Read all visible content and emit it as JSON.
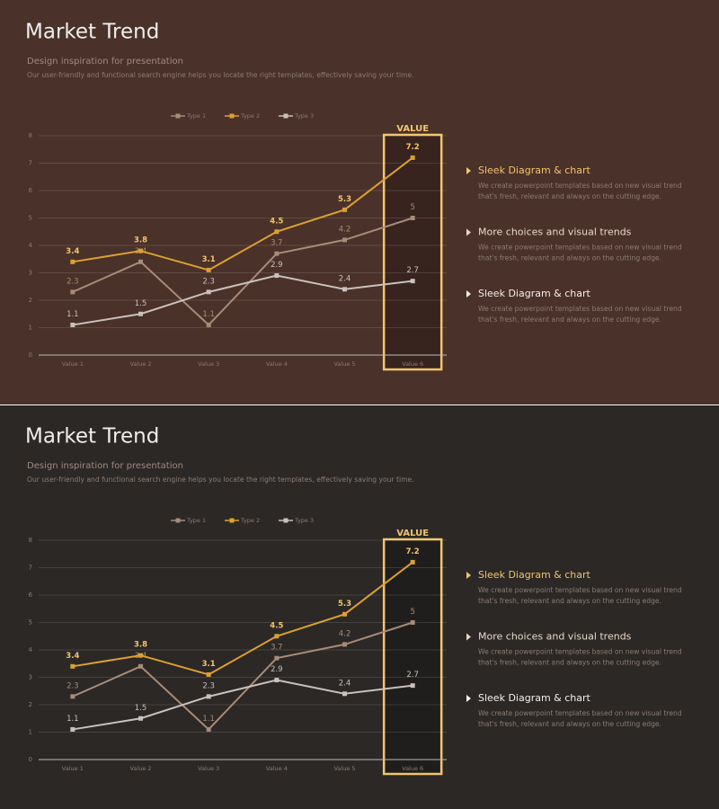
{
  "chart_data": [
    {
      "type": "line",
      "background": "#4a3129",
      "title": "Market Trend",
      "subtitle": "Design inspiration for presentation",
      "description": "Our user-friendly and functional search engine helps you locate the right templates, effectively saving your time.",
      "categories": [
        "Value 1",
        "Value 2",
        "Value 3",
        "Value 4",
        "Value 5",
        "Value 6"
      ],
      "series": [
        {
          "name": "Type 1",
          "color": "#a88b78",
          "values": [
            2.3,
            3.4,
            1.1,
            3.7,
            4.2,
            5
          ]
        },
        {
          "name": "Type 2",
          "color": "#dca032",
          "values": [
            3.4,
            3.8,
            3.1,
            4.5,
            5.3,
            7.2
          ]
        },
        {
          "name": "Type 3",
          "color": "#c9c1bc",
          "values": [
            1.1,
            1.5,
            2.3,
            2.9,
            2.4,
            2.7
          ]
        }
      ],
      "ylim": [
        0,
        8
      ],
      "yticks": [
        0,
        1,
        2,
        3,
        4,
        5,
        6,
        7,
        8
      ],
      "grid": true,
      "legend": "top",
      "highlight": {
        "category": 5,
        "label": "VALUE",
        "color": "#f2c46e"
      },
      "bullets": [
        {
          "heading": "Sleek Diagram & chart",
          "color": "#f2c46e",
          "lines": [
            "We create powerpoint templates based on new visual trend",
            "that's fresh, relevant and always on the cutting edge."
          ]
        },
        {
          "heading": "More choices and visual trends",
          "color": "#e8d8c8",
          "lines": [
            "We create powerpoint templates based on new visual trend",
            "that's fresh, relevant and always on the cutting edge."
          ]
        },
        {
          "heading": "Sleek Diagram & chart",
          "color": "#f4f0ec",
          "lines": [
            "We create powerpoint templates based on new visual trend",
            "that's fresh, relevant and always on the cutting edge."
          ]
        }
      ]
    },
    {
      "type": "line",
      "background": "#2b2826",
      "title": "Market Trend",
      "subtitle": "Design inspiration for presentation",
      "description": "Our user-friendly and functional search engine helps you locate the right templates, effectively saving your time.",
      "categories": [
        "Value 1",
        "Value 2",
        "Value 3",
        "Value 4",
        "Value 5",
        "Value 6"
      ],
      "series": [
        {
          "name": "Type 1",
          "color": "#a88b78",
          "values": [
            2.3,
            3.4,
            1.1,
            3.7,
            4.2,
            5
          ]
        },
        {
          "name": "Type 2",
          "color": "#dca032",
          "values": [
            3.4,
            3.8,
            3.1,
            4.5,
            5.3,
            7.2
          ]
        },
        {
          "name": "Type 3",
          "color": "#c9c1bc",
          "values": [
            1.1,
            1.5,
            2.3,
            2.9,
            2.4,
            2.7
          ]
        }
      ],
      "ylim": [
        0,
        8
      ],
      "yticks": [
        0,
        1,
        2,
        3,
        4,
        5,
        6,
        7,
        8
      ],
      "grid": true,
      "legend": "top",
      "highlight": {
        "category": 5,
        "label": "VALUE",
        "color": "#f2c46e"
      },
      "bullets": [
        {
          "heading": "Sleek Diagram & chart",
          "color": "#f2c46e",
          "lines": [
            "We create powerpoint templates based on new visual trend",
            "that's fresh, relevant and always on the cutting edge."
          ]
        },
        {
          "heading": "More choices and visual trends",
          "color": "#e8d8c8",
          "lines": [
            "We create powerpoint templates based on new visual trend",
            "that's fresh, relevant and always on the cutting edge."
          ]
        },
        {
          "heading": "Sleek Diagram & chart",
          "color": "#f4f0ec",
          "lines": [
            "We create powerpoint templates based on new visual trend",
            "that's fresh, relevant and always on the cutting edge."
          ]
        }
      ]
    }
  ]
}
